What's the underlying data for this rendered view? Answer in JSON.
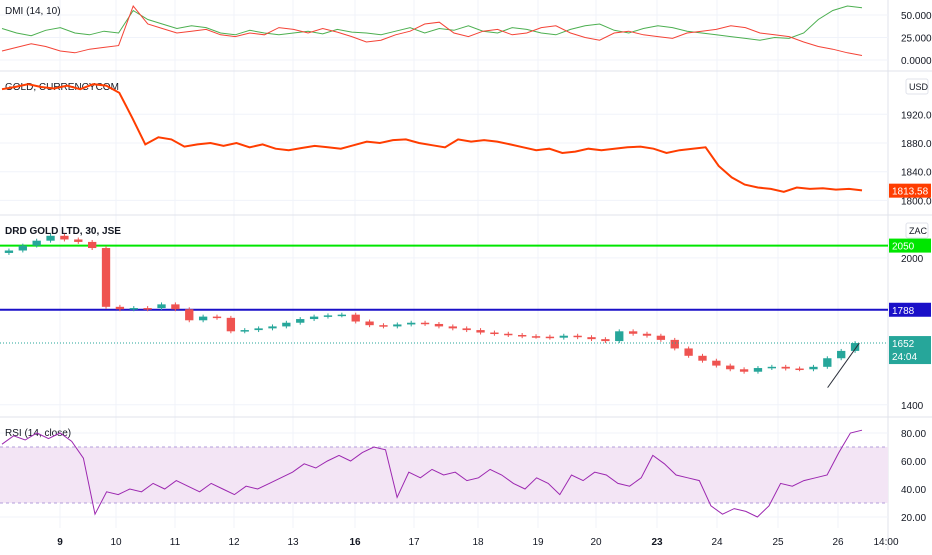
{
  "colors": {
    "up": "#26a69a",
    "down": "#ef5350",
    "dmi_plus": "#4caf50",
    "dmi_minus": "#f44336",
    "gold_line": "#ff3d00",
    "support": "#00e600",
    "resistance": "#1a10c8",
    "rsi_line": "#9c27b0",
    "rsi_band": "#f3e5f5",
    "price_tag": "#26a69a"
  },
  "chart_data": [
    {
      "type": "line",
      "title": "DMI (14, 10)",
      "ylim": [
        0,
        60
      ],
      "y_ticks": [
        "50.0000",
        "25.0000",
        "0.0000"
      ],
      "y_tick_values": [
        50,
        25,
        0
      ],
      "series": [
        {
          "values": [
            35,
            30,
            27,
            33,
            36,
            30,
            28,
            32,
            30,
            55,
            45,
            40,
            35,
            38,
            36,
            30,
            28,
            33,
            30,
            28,
            30,
            32,
            29,
            34,
            31,
            30,
            28,
            32,
            36,
            30,
            35,
            33,
            38,
            32,
            30,
            36,
            34,
            30,
            28,
            34,
            38,
            40,
            33,
            30,
            35,
            38,
            36,
            32,
            30,
            28,
            26,
            24,
            22,
            25,
            24,
            30,
            45,
            55,
            60,
            58
          ]
        },
        {
          "values": [
            10,
            14,
            18,
            15,
            10,
            8,
            12,
            14,
            16,
            60,
            40,
            35,
            30,
            32,
            34,
            28,
            26,
            30,
            28,
            36,
            34,
            30,
            35,
            31,
            26,
            20,
            22,
            28,
            32,
            40,
            42,
            30,
            26,
            32,
            34,
            28,
            30,
            36,
            38,
            30,
            25,
            22,
            30,
            32,
            28,
            26,
            24,
            30,
            32,
            34,
            38,
            36,
            30,
            28,
            26,
            20,
            15,
            12,
            8,
            5
          ]
        }
      ]
    },
    {
      "type": "line",
      "title": "GOLD, CURRENCYCOM",
      "unit": "USD",
      "ylim": [
        1795,
        1965
      ],
      "y_ticks": [
        "1920.00",
        "1880.00",
        "1840.00",
        "1800.00"
      ],
      "y_tick_values": [
        1920,
        1880,
        1840,
        1800
      ],
      "last_value": "1813.58",
      "series": [
        {
          "values": [
            1955,
            1958,
            1962,
            1958,
            1956,
            1960,
            1955,
            1962,
            1960,
            1950,
            1915,
            1878,
            1888,
            1885,
            1875,
            1878,
            1880,
            1876,
            1880,
            1874,
            1878,
            1872,
            1870,
            1873,
            1876,
            1874,
            1872,
            1877,
            1882,
            1880,
            1884,
            1885,
            1880,
            1877,
            1874,
            1885,
            1882,
            1884,
            1882,
            1878,
            1874,
            1870,
            1872,
            1866,
            1868,
            1872,
            1870,
            1872,
            1874,
            1875,
            1872,
            1866,
            1870,
            1872,
            1874,
            1848,
            1832,
            1822,
            1818,
            1816,
            1812,
            1818,
            1816,
            1817,
            1815,
            1816,
            1814
          ]
        }
      ]
    },
    {
      "type": "candlestick",
      "title": "DRD GOLD LTD, 30, JSE",
      "unit": "ZAC",
      "ylim": [
        1395,
        2130
      ],
      "y_ticks": [
        "2000",
        "1400"
      ],
      "y_tick_values": [
        2000,
        1400
      ],
      "hlines": [
        {
          "value": 2050,
          "color": "support",
          "label": "2050"
        },
        {
          "value": 1788,
          "color": "resistance",
          "label": "1788"
        }
      ],
      "last_value": "1652",
      "countdown": "24:04",
      "trendline": [
        [
          0.888,
          1470
        ],
        [
          0.922,
          1652
        ]
      ],
      "candles": [
        [
          2020,
          2030
        ],
        [
          2030,
          2050
        ],
        [
          2050,
          2070
        ],
        [
          2070,
          2090
        ],
        [
          2090,
          2075
        ],
        [
          2075,
          2065
        ],
        [
          2065,
          2040
        ],
        [
          2040,
          1800
        ],
        [
          1800,
          1790
        ],
        [
          1790,
          1795
        ],
        [
          1795,
          1790
        ],
        [
          1795,
          1810
        ],
        [
          1810,
          1790
        ],
        [
          1790,
          1745
        ],
        [
          1745,
          1760
        ],
        [
          1760,
          1755
        ],
        [
          1755,
          1700
        ],
        [
          1700,
          1705
        ],
        [
          1705,
          1712
        ],
        [
          1712,
          1720
        ],
        [
          1720,
          1735
        ],
        [
          1735,
          1750
        ],
        [
          1750,
          1760
        ],
        [
          1760,
          1765
        ],
        [
          1765,
          1768
        ],
        [
          1768,
          1740
        ],
        [
          1740,
          1725
        ],
        [
          1725,
          1720
        ],
        [
          1720,
          1728
        ],
        [
          1728,
          1735
        ],
        [
          1735,
          1730
        ],
        [
          1730,
          1720
        ],
        [
          1720,
          1712
        ],
        [
          1712,
          1705
        ],
        [
          1705,
          1695
        ],
        [
          1695,
          1690
        ],
        [
          1690,
          1685
        ],
        [
          1685,
          1680
        ],
        [
          1680,
          1678
        ],
        [
          1678,
          1674
        ],
        [
          1674,
          1682
        ],
        [
          1682,
          1676
        ],
        [
          1676,
          1668
        ],
        [
          1668,
          1660
        ],
        [
          1660,
          1700
        ],
        [
          1700,
          1690
        ],
        [
          1690,
          1682
        ],
        [
          1682,
          1665
        ],
        [
          1665,
          1630
        ],
        [
          1630,
          1600
        ],
        [
          1600,
          1580
        ],
        [
          1580,
          1560
        ],
        [
          1560,
          1545
        ],
        [
          1545,
          1535
        ],
        [
          1535,
          1550
        ],
        [
          1550,
          1555
        ],
        [
          1555,
          1548
        ],
        [
          1548,
          1545
        ],
        [
          1545,
          1555
        ],
        [
          1555,
          1590
        ],
        [
          1590,
          1620
        ],
        [
          1620,
          1652
        ]
      ]
    },
    {
      "type": "line",
      "title": "RSI (14, close)",
      "ylim": [
        15,
        85
      ],
      "y_ticks": [
        "80.00",
        "60.00",
        "40.00",
        "20.00"
      ],
      "y_tick_values": [
        80,
        60,
        40,
        20
      ],
      "band": [
        30,
        70
      ],
      "series": [
        {
          "values": [
            72,
            78,
            75,
            80,
            76,
            80,
            74,
            62,
            22,
            38,
            36,
            40,
            38,
            44,
            40,
            46,
            42,
            38,
            44,
            40,
            36,
            42,
            40,
            44,
            48,
            52,
            58,
            55,
            60,
            64,
            60,
            66,
            70,
            68,
            34,
            52,
            48,
            54,
            50,
            52,
            46,
            48,
            54,
            50,
            44,
            40,
            48,
            44,
            36,
            50,
            46,
            52,
            50,
            44,
            42,
            48,
            64,
            58,
            50,
            48,
            46,
            28,
            22,
            26,
            24,
            20,
            28,
            44,
            42,
            46,
            48,
            50,
            66,
            80,
            82
          ]
        }
      ]
    }
  ],
  "x_axis": {
    "labels": [
      "9",
      "10",
      "11",
      "12",
      "13",
      "16",
      "17",
      "18",
      "19",
      "20",
      "23",
      "24",
      "25",
      "26",
      "14:00"
    ],
    "bold": [
      "9",
      "16",
      "23"
    ]
  }
}
